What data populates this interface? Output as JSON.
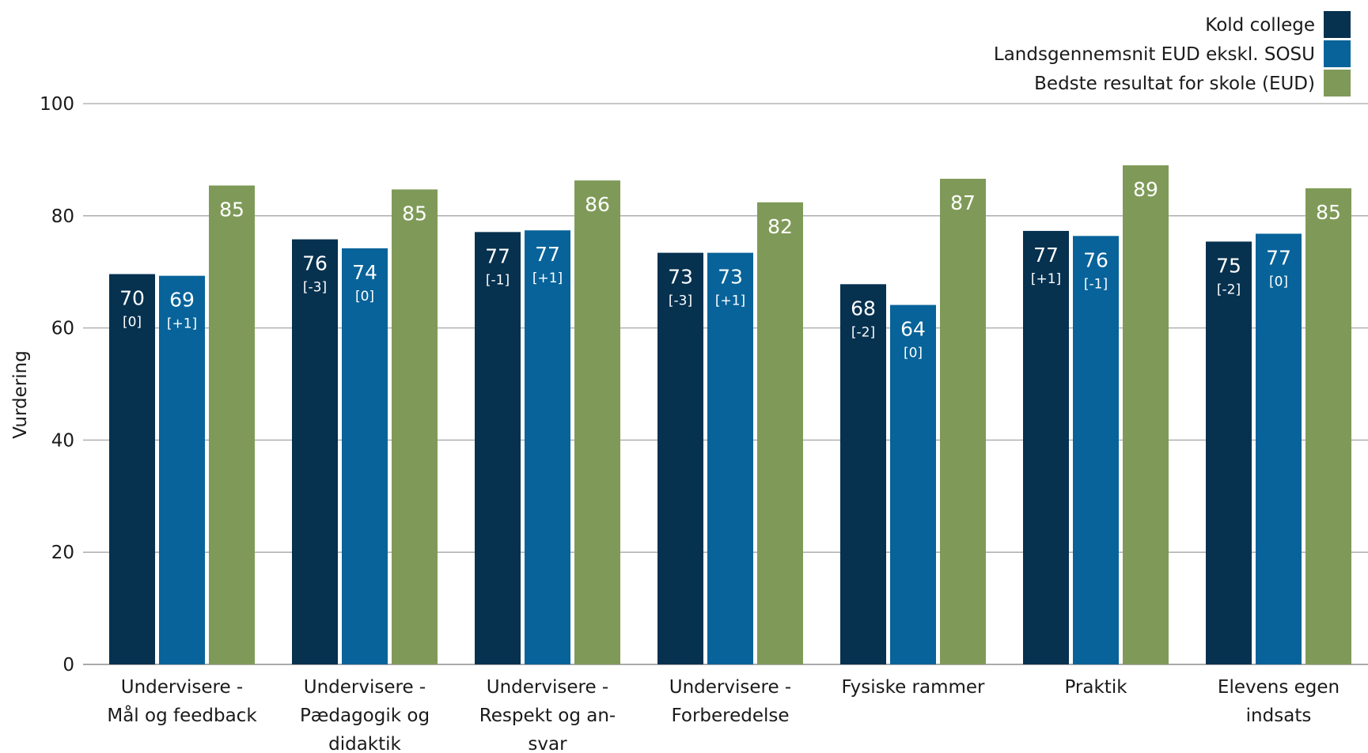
{
  "chart_data": {
    "type": "bar",
    "ylabel": "Vurdering",
    "ylim": [
      0,
      100
    ],
    "yticks": [
      0,
      20,
      40,
      60,
      80,
      100
    ],
    "grid": true,
    "legend_position": "top-right",
    "categories": [
      [
        "Undervisere -",
        "Mål og feedback"
      ],
      [
        "Undervisere -",
        "Pædagogik og",
        "didaktik"
      ],
      [
        "Undervisere -",
        "Respekt og an-",
        "svar"
      ],
      [
        "Undervisere -",
        "Forberedelse"
      ],
      [
        "Fysiske rammer"
      ],
      [
        "Praktik"
      ],
      [
        "Elevens egen",
        "indsats"
      ]
    ],
    "series": [
      {
        "name": "Kold college",
        "color": "#06314f",
        "values": [
          69.6,
          75.8,
          77.1,
          73.4,
          67.8,
          77.3,
          75.4
        ],
        "labels": [
          "70",
          "76",
          "77",
          "73",
          "68",
          "77",
          "75"
        ],
        "changes": [
          "[0]",
          "[-3]",
          "[-1]",
          "[-3]",
          "[-2]",
          "[+1]",
          "[-2]"
        ]
      },
      {
        "name": "Landsgennemsnit EUD ekskl. SOSU",
        "color": "#07639a",
        "values": [
          69.3,
          74.2,
          77.4,
          73.4,
          64.1,
          76.4,
          76.8
        ],
        "labels": [
          "69",
          "74",
          "77",
          "73",
          "64",
          "76",
          "77"
        ],
        "changes": [
          "[+1]",
          "[0]",
          "[+1]",
          "[+1]",
          "[0]",
          "[-1]",
          "[0]"
        ]
      },
      {
        "name": "Bedste resultat for skole (EUD)",
        "color": "#7f9a58",
        "values": [
          85.4,
          84.7,
          86.3,
          82.4,
          86.6,
          89.0,
          84.9
        ],
        "labels": [
          "85",
          "85",
          "86",
          "82",
          "87",
          "89",
          "85"
        ],
        "changes": [
          "",
          "",
          "",
          "",
          "",
          "",
          ""
        ]
      }
    ]
  }
}
